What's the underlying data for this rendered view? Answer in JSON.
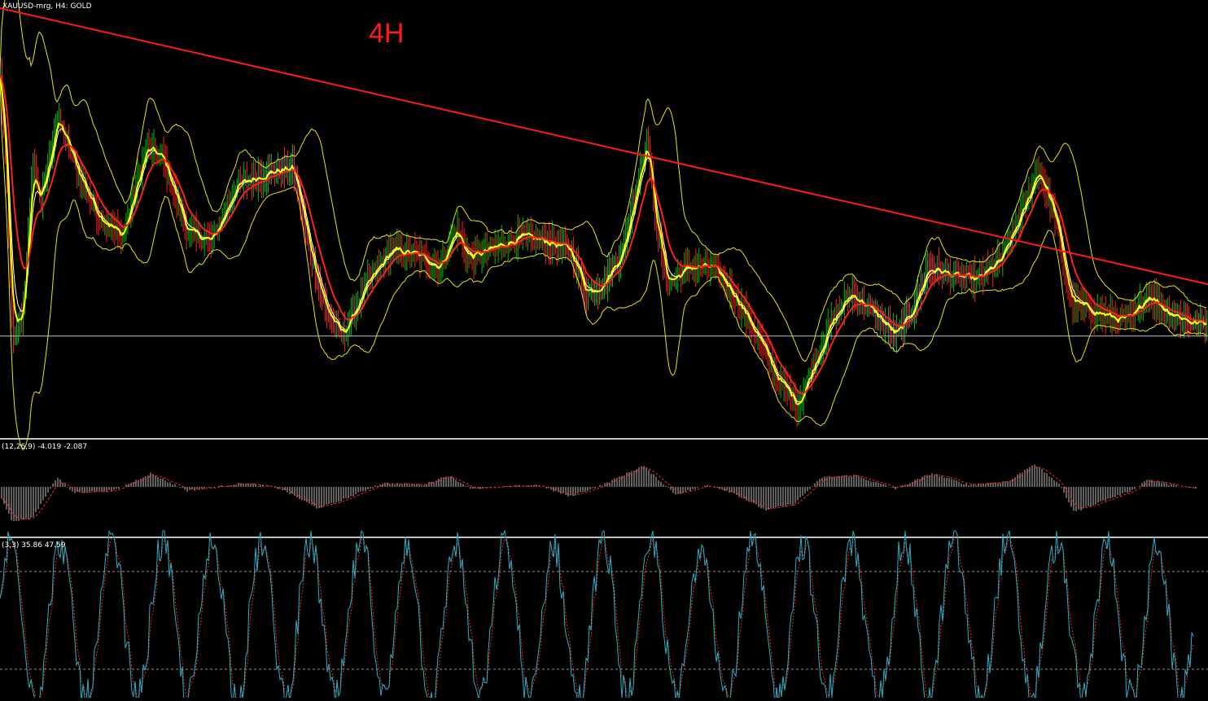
{
  "header": {
    "symbol_line": "XAUUSD-mrg, H4:  GOLD",
    "timeframe_annotation": "4H"
  },
  "subwindows": {
    "macd_label": "(12,26,9) -4.019 -2.087",
    "stoch_label": "(3,3) 35.86 47.59"
  },
  "colors": {
    "background": "#000000",
    "bull_candle": "#00c000",
    "bear_candle": "#ff2020",
    "ma_fast": "#ffff00",
    "ma_slow": "#ff2020",
    "ma_mid": "#ffffff",
    "bollinger": "#e6e600",
    "trendline": "#ff1a1a",
    "hline": "#c0c0c0",
    "macd_hist": "#c0c0c0",
    "macd_signal": "#ff2020",
    "stoch_main": "#20b2c8",
    "stoch_signal": "#ff2020",
    "separator": "#c0c0c0"
  },
  "chart_data": [
    {
      "type": "line",
      "panel": "price",
      "anchors": [
        [
          0,
          0.84
        ],
        [
          8,
          0.58
        ],
        [
          15,
          0.22
        ],
        [
          28,
          0.3
        ],
        [
          40,
          0.65
        ],
        [
          50,
          0.55
        ],
        [
          70,
          0.75
        ],
        [
          95,
          0.62
        ],
        [
          120,
          0.52
        ],
        [
          150,
          0.47
        ],
        [
          180,
          0.68
        ],
        [
          200,
          0.65
        ],
        [
          230,
          0.48
        ],
        [
          260,
          0.46
        ],
        [
          290,
          0.59
        ],
        [
          330,
          0.62
        ],
        [
          360,
          0.63
        ],
        [
          380,
          0.44
        ],
        [
          400,
          0.3
        ],
        [
          420,
          0.24
        ],
        [
          450,
          0.36
        ],
        [
          480,
          0.44
        ],
        [
          510,
          0.43
        ],
        [
          540,
          0.4
        ],
        [
          560,
          0.49
        ],
        [
          575,
          0.42
        ],
        [
          600,
          0.44
        ],
        [
          640,
          0.47
        ],
        [
          670,
          0.46
        ],
        [
          700,
          0.44
        ],
        [
          720,
          0.34
        ],
        [
          740,
          0.36
        ],
        [
          765,
          0.44
        ],
        [
          785,
          0.62
        ],
        [
          795,
          0.7
        ],
        [
          805,
          0.5
        ],
        [
          820,
          0.36
        ],
        [
          845,
          0.4
        ],
        [
          875,
          0.4
        ],
        [
          900,
          0.34
        ],
        [
          930,
          0.24
        ],
        [
          955,
          0.14
        ],
        [
          980,
          0.08
        ],
        [
          1000,
          0.18
        ],
        [
          1020,
          0.27
        ],
        [
          1045,
          0.34
        ],
        [
          1070,
          0.3
        ],
        [
          1100,
          0.24
        ],
        [
          1120,
          0.3
        ],
        [
          1140,
          0.4
        ],
        [
          1170,
          0.38
        ],
        [
          1200,
          0.37
        ],
        [
          1230,
          0.42
        ],
        [
          1260,
          0.55
        ],
        [
          1275,
          0.63
        ],
        [
          1295,
          0.52
        ],
        [
          1315,
          0.32
        ],
        [
          1340,
          0.3
        ],
        [
          1370,
          0.28
        ],
        [
          1390,
          0.28
        ],
        [
          1410,
          0.34
        ],
        [
          1430,
          0.3
        ],
        [
          1465,
          0.27
        ]
      ],
      "x_range": [
        0,
        1484
      ],
      "y_range": [
        0,
        1
      ],
      "grid": false,
      "trendline": {
        "from": [
          0,
          1.0
        ],
        "to": [
          1484,
          0.36
        ]
      },
      "hline_level": 0.24
    },
    {
      "type": "bar",
      "panel": "macd",
      "anchors": [
        [
          0,
          -0.2
        ],
        [
          15,
          -0.9
        ],
        [
          40,
          -0.8
        ],
        [
          70,
          0.25
        ],
        [
          90,
          -0.15
        ],
        [
          140,
          -0.1
        ],
        [
          185,
          0.35
        ],
        [
          230,
          -0.1
        ],
        [
          300,
          0.1
        ],
        [
          345,
          -0.05
        ],
        [
          390,
          -0.55
        ],
        [
          420,
          -0.35
        ],
        [
          470,
          0.1
        ],
        [
          520,
          0.05
        ],
        [
          550,
          0.3
        ],
        [
          580,
          -0.05
        ],
        [
          660,
          0.05
        ],
        [
          700,
          -0.25
        ],
        [
          740,
          0.05
        ],
        [
          790,
          0.55
        ],
        [
          830,
          -0.2
        ],
        [
          870,
          0.05
        ],
        [
          900,
          -0.15
        ],
        [
          940,
          -0.6
        ],
        [
          975,
          -0.45
        ],
        [
          1010,
          0.25
        ],
        [
          1050,
          0.3
        ],
        [
          1100,
          -0.05
        ],
        [
          1145,
          0.35
        ],
        [
          1190,
          0.05
        ],
        [
          1240,
          0.15
        ],
        [
          1270,
          0.6
        ],
        [
          1300,
          0.1
        ],
        [
          1320,
          -0.65
        ],
        [
          1350,
          -0.4
        ],
        [
          1390,
          -0.1
        ],
        [
          1410,
          0.2
        ],
        [
          1440,
          0.05
        ],
        [
          1465,
          -0.05
        ]
      ],
      "x_range": [
        0,
        1484
      ],
      "y_range": [
        -1,
        1
      ]
    },
    {
      "type": "line",
      "panel": "stochastic",
      "y_range": [
        0,
        100
      ],
      "levels": [
        80,
        20
      ]
    }
  ]
}
